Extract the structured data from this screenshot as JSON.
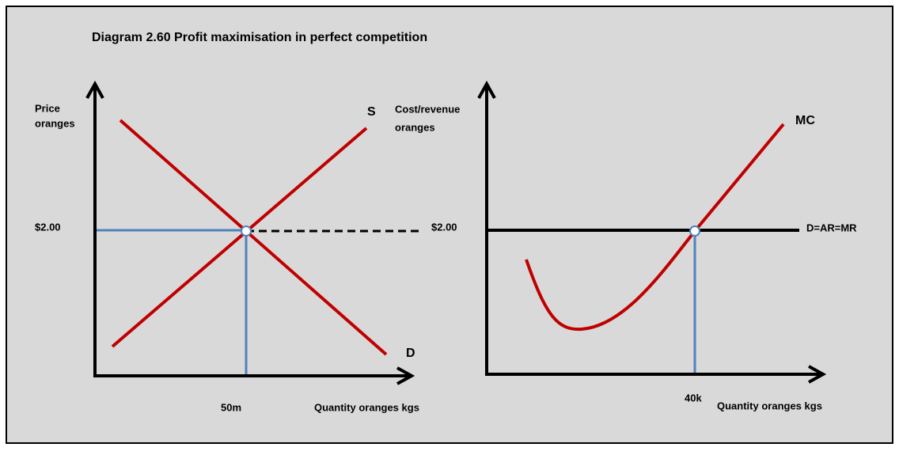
{
  "title": "Diagram 2.60 Profit maximisation in perfect competition",
  "left": {
    "y_label": [
      "Price",
      "oranges"
    ],
    "price": "$2.00",
    "supply": "S",
    "demand": "D",
    "quantity": "50m",
    "x_label": "Quantity oranges kgs"
  },
  "right": {
    "y_label": [
      "Cost/revenue",
      "oranges"
    ],
    "price": "$2.00",
    "mc": "MC",
    "demand": "D=AR=MR",
    "quantity": "40k",
    "x_label": "Quantity oranges kgs"
  }
}
